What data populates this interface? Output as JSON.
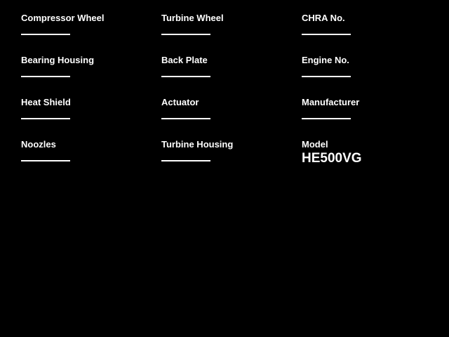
{
  "theme": {
    "background": "#000000",
    "text": "#ffffff",
    "line": "#ffffff"
  },
  "form": {
    "columns": [
      {
        "fields": [
          {
            "label": "Compressor Wheel",
            "value": ""
          },
          {
            "label": "Bearing Housing",
            "value": ""
          },
          {
            "label": "Heat Shield",
            "value": ""
          },
          {
            "label": "Noozles",
            "value": ""
          }
        ]
      },
      {
        "fields": [
          {
            "label": "Turbine Wheel",
            "value": ""
          },
          {
            "label": "Back Plate",
            "value": ""
          },
          {
            "label": "Actuator",
            "value": ""
          },
          {
            "label": "Turbine Housing",
            "value": ""
          }
        ]
      },
      {
        "fields": [
          {
            "label": "CHRA No.",
            "value": ""
          },
          {
            "label": "Engine No.",
            "value": ""
          },
          {
            "label": "Manufacturer",
            "value": ""
          },
          {
            "label": "Model",
            "value": "HE500VG"
          }
        ]
      }
    ]
  }
}
